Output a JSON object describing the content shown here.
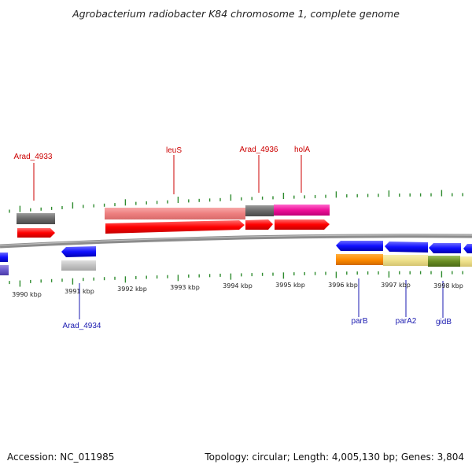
{
  "title": "Agrobacterium radiobacter K84 chromosome 1, complete genome",
  "footer": {
    "accession": "Accession: NC_011985",
    "stats": "Topology: circular; Length: 4,005,130 bp; Genes: 3,804"
  },
  "axis": {
    "unit": "kbp",
    "labels": [
      "3990 kbp",
      "3991 kbp",
      "3992 kbp",
      "3993 kbp",
      "3994 kbp",
      "3995 kbp",
      "3996 kbp",
      "3997 kbp",
      "3998 kbp"
    ]
  },
  "gene_labels": {
    "top": [
      "Arad_4933",
      "leuS",
      "Arad_4936",
      "holA"
    ],
    "bottom": [
      "Arad_4934",
      "parB",
      "parA2",
      "gidB"
    ]
  },
  "colors": {
    "backbone": "#8c8c8c",
    "tick": "#2e8b2e",
    "label_top": "#cc0000",
    "label_bottom": "#1a1ab0",
    "cds_forward": "#ff1a1a",
    "cds_reverse": "#1a1aff"
  }
}
